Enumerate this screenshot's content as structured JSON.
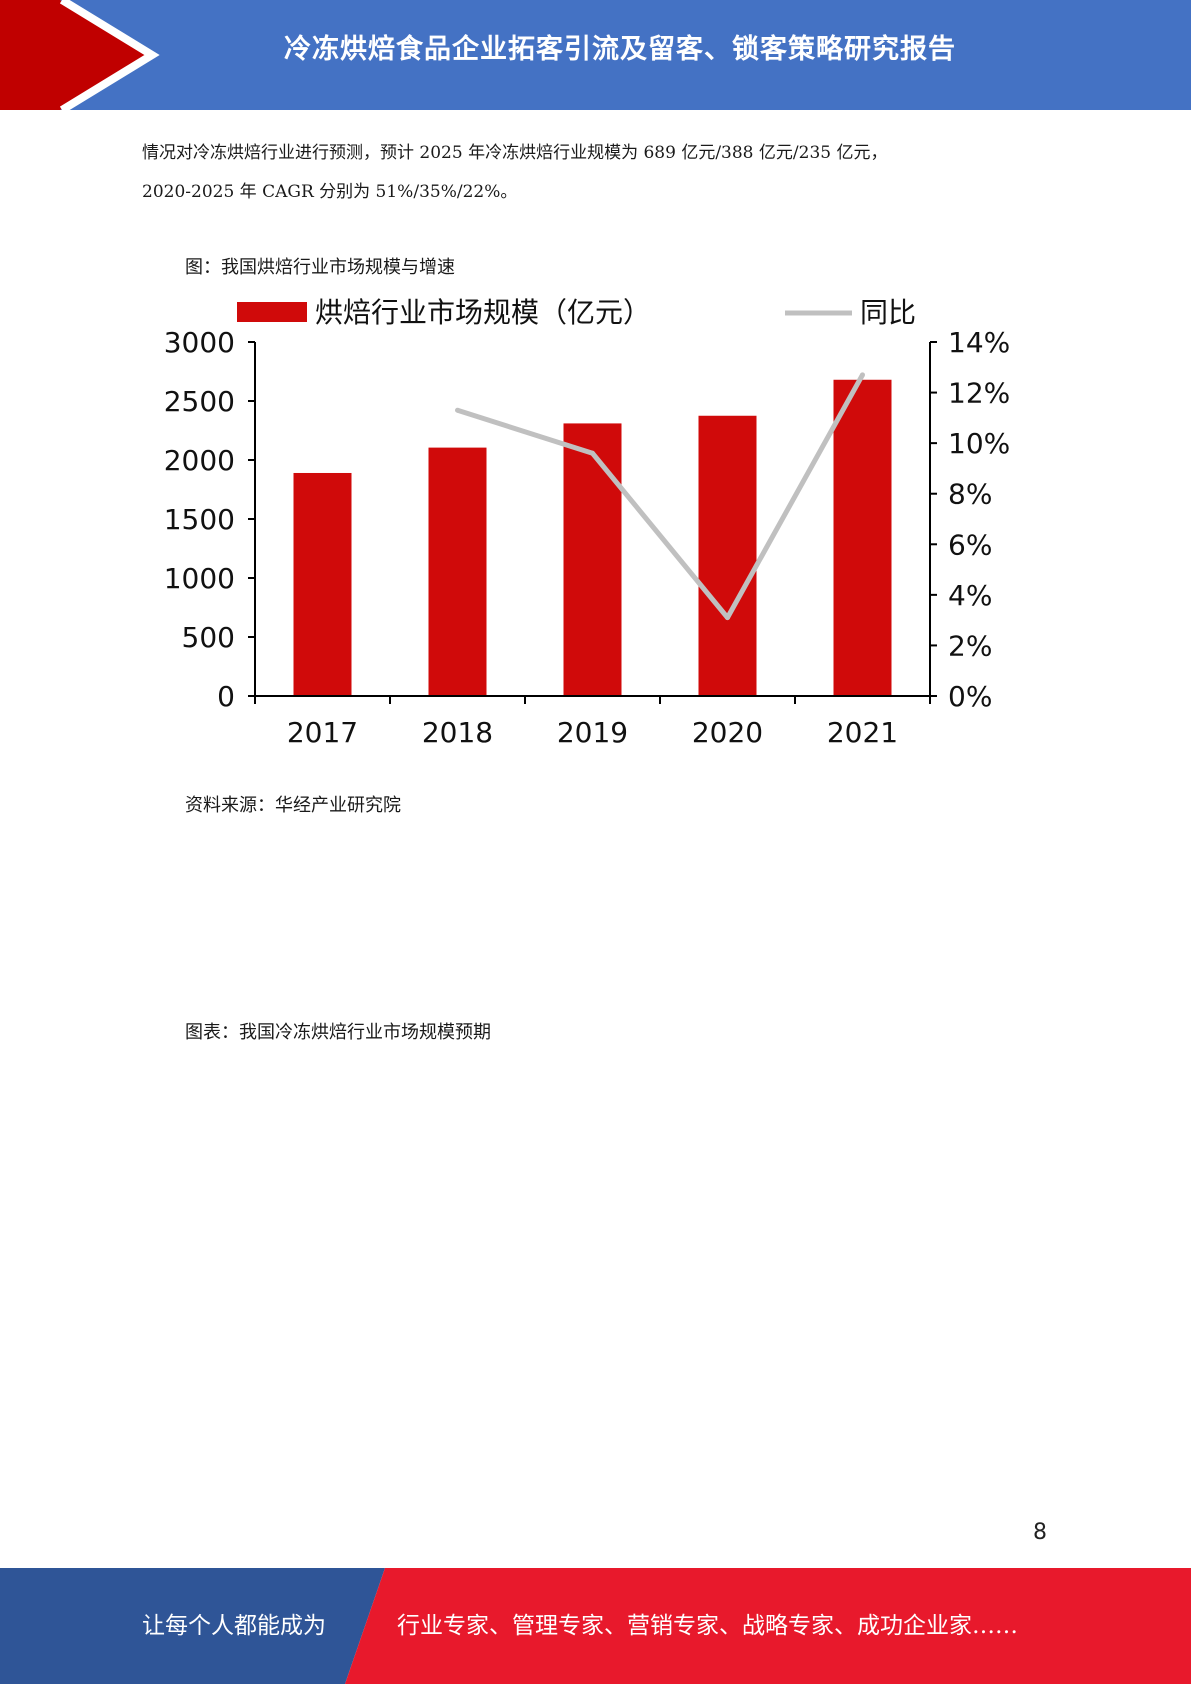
{
  "header": {
    "title": "冷冻烘焙食品企业拓客引流及留客、锁客策略研究报告",
    "colors": {
      "band": "#4472c4",
      "arrow": "#c00000",
      "arrow_outline": "#ffffff"
    }
  },
  "body": {
    "paragraph_lines": [
      "情况对冷冻烘焙行业进行预测，预计 2025 年冷冻烘焙行业规模为 689 亿元/388 亿元/235 亿元，",
      "2020-2025 年 CAGR 分别为 51%/35%/22%。"
    ],
    "figure1_caption": "图：我国烘焙行业市场规模与增速",
    "figure1_source": "资料来源：华经产业研究院",
    "figure2_caption": "图表：我国冷冻烘焙行业市场规模预期"
  },
  "chart_data": {
    "type": "bar",
    "categories": [
      "2017",
      "2018",
      "2019",
      "2020",
      "2021"
    ],
    "series": [
      {
        "name": "烘焙行业市场规模（亿元）",
        "type": "bar",
        "axis": "left",
        "color": "#d00a0a",
        "values": [
          1890,
          2105,
          2310,
          2375,
          2680
        ]
      },
      {
        "name": "同比",
        "type": "line",
        "axis": "right",
        "color": "#c0c0c0",
        "values": [
          null,
          11.3,
          9.6,
          3.1,
          12.7
        ]
      }
    ],
    "y_left": {
      "min": 0,
      "max": 3000,
      "ticks": [
        "0",
        "500",
        "1000",
        "1500",
        "2000",
        "2500",
        "3000"
      ]
    },
    "y_right": {
      "min": 0,
      "max": 14,
      "ticks": [
        "0%",
        "2%",
        "4%",
        "6%",
        "8%",
        "10%",
        "12%",
        "14%"
      ]
    },
    "legend": "top",
    "grid": false
  },
  "page_number": "8",
  "footer": {
    "left_text": "让每个人都能成为",
    "right_text": "行业专家、管理专家、营销专家、战略专家、成功企业家……",
    "colors": {
      "left": "#2f5597",
      "right": "#e8192c"
    }
  }
}
